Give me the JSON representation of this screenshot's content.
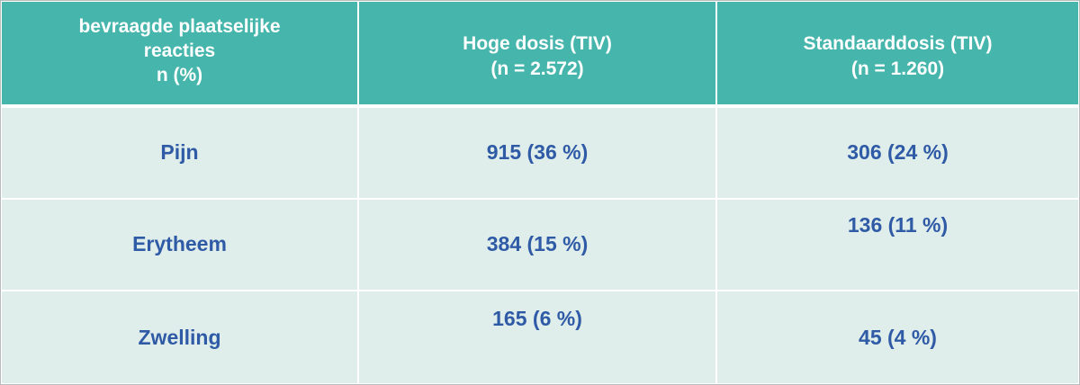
{
  "table": {
    "headers": [
      {
        "lines": [
          "bevraagde plaatselijke",
          "reacties",
          "n (%)"
        ]
      },
      {
        "lines": [
          "Hoge dosis (TIV)",
          "(n = 2.572)"
        ]
      },
      {
        "lines": [
          "Standaarddosis (TIV)",
          "(n = 1.260)"
        ]
      }
    ],
    "rows": [
      {
        "label": "Pijn",
        "high_dose": "915 (36 %)",
        "standard_dose": "306 (24 %)"
      },
      {
        "label": "Erytheem",
        "high_dose": "384 (15 %)",
        "standard_dose": "136 (11 %)"
      },
      {
        "label": "Zwelling",
        "high_dose": "165 (6 %)",
        "standard_dose": "45 (4 %)"
      }
    ]
  },
  "colors": {
    "header_background": "#46b5ac",
    "header_text": "#ffffff",
    "body_background": "#dfedeb",
    "body_text": "#2f5aa6"
  }
}
